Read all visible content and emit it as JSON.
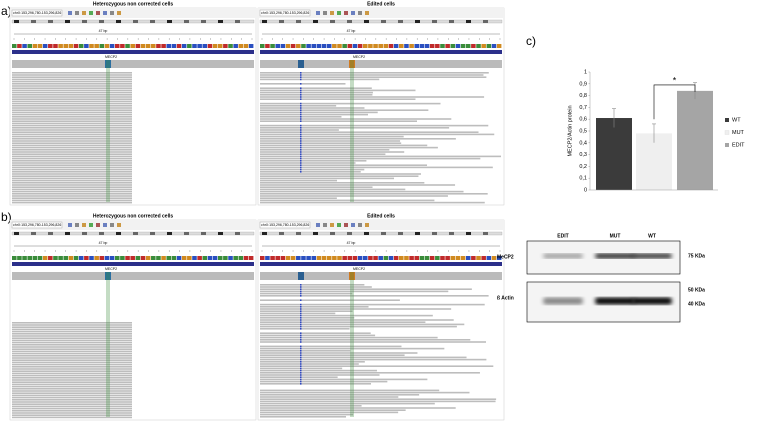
{
  "panels": {
    "a": "a)",
    "b": "b)",
    "c": "c)"
  },
  "igv": [
    {
      "title": "Heterozygous non corrected cells",
      "locus": "chrX:153,296,780-153,296,826",
      "span": "47 bp",
      "gene": "MECP2"
    },
    {
      "title": "Edited cells",
      "locus": "chrX:153,296,780-153,296,826",
      "span": "47 bp",
      "gene": "MECP2"
    },
    {
      "title": "Heterozygous non corrected cells",
      "locus": "chrX:153,296,780-153,296,826",
      "span": "47 bp",
      "gene": "MECP2"
    },
    {
      "title": "Edited cells",
      "locus": "chrX:153,296,780-153,296,826",
      "span": "47 bp",
      "gene": "MECP2"
    }
  ],
  "chart_data": {
    "type": "bar",
    "y_label": "MECP2/Actin protein",
    "categories": [
      "WT",
      "MUT",
      "EDIT"
    ],
    "values": [
      0.61,
      0.48,
      0.84
    ],
    "errors": [
      0.08,
      0.08,
      0.07
    ],
    "colors": [
      "#3b3b3b",
      "#efefef",
      "#a5a5a5"
    ],
    "ylim": [
      0,
      1
    ],
    "yticks": [
      0,
      {
        "value": 0.1,
        "label": "0,1"
      },
      {
        "value": 0.2,
        "label": "0,2"
      },
      {
        "value": 0.3,
        "label": "0,3"
      },
      {
        "value": 0.4,
        "label": "0,4"
      },
      {
        "value": 0.5,
        "label": "0,5"
      },
      {
        "value": 0.6,
        "label": "0,6"
      },
      {
        "value": 0.7,
        "label": "0,7"
      },
      {
        "value": 0.8,
        "label": "0,8"
      },
      {
        "value": 0.9,
        "label": "0,9"
      },
      1
    ],
    "significance": "*",
    "legend": "right"
  },
  "blot": {
    "lanes": [
      "EDIT",
      "MUT",
      "WT"
    ],
    "rows": [
      "MeCP2",
      "ß Actin"
    ],
    "markers": [
      "75 KDa",
      "50 KDa",
      "40 KDa"
    ]
  }
}
